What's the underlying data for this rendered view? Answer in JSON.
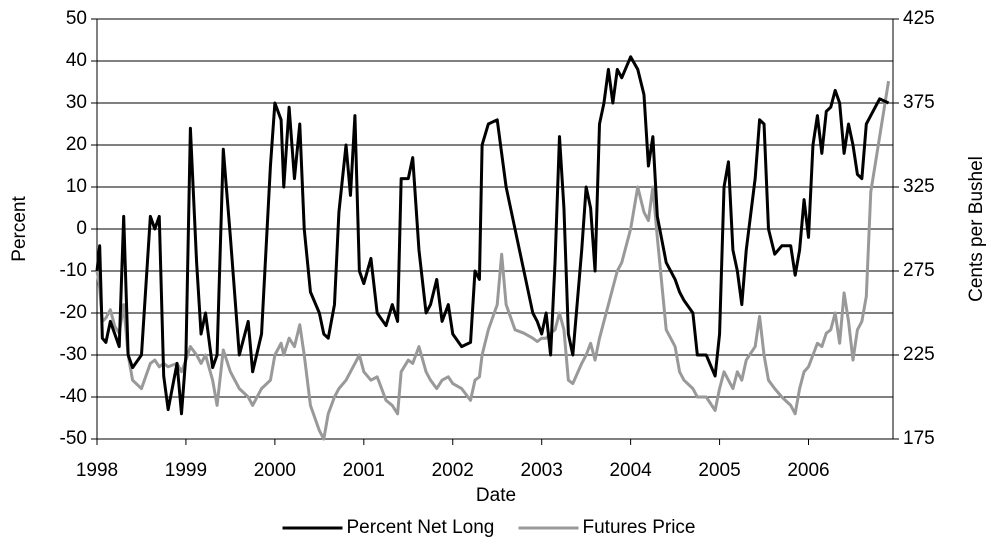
{
  "chart_data": {
    "type": "line",
    "x_label": "Date",
    "y_label": "Percent",
    "y2_label": "Cents per Bushel",
    "x": [
      1998.0,
      1998.03,
      1998.06,
      1998.1,
      1998.15,
      1998.2,
      1998.25,
      1998.3,
      1998.35,
      1998.4,
      1998.5,
      1998.6,
      1998.65,
      1998.7,
      1998.75,
      1998.8,
      1998.9,
      1998.95,
      1999.0,
      1999.05,
      1999.12,
      1999.17,
      1999.22,
      1999.3,
      1999.35,
      1999.42,
      1999.5,
      1999.6,
      1999.7,
      1999.75,
      1999.85,
      1999.95,
      2000.0,
      2000.07,
      2000.1,
      2000.16,
      2000.22,
      2000.28,
      2000.33,
      2000.4,
      2000.5,
      2000.55,
      2000.6,
      2000.67,
      2000.72,
      2000.8,
      2000.85,
      2000.9,
      2000.95,
      2001.0,
      2001.08,
      2001.15,
      2001.25,
      2001.32,
      2001.38,
      2001.42,
      2001.5,
      2001.55,
      2001.62,
      2001.7,
      2001.75,
      2001.82,
      2001.88,
      2001.95,
      2002.0,
      2002.1,
      2002.2,
      2002.25,
      2002.3,
      2002.33,
      2002.4,
      2002.5,
      2002.55,
      2002.6,
      2002.7,
      2002.8,
      2002.9,
      2002.95,
      2003.0,
      2003.05,
      2003.1,
      2003.15,
      2003.2,
      2003.25,
      2003.3,
      2003.35,
      2003.45,
      2003.5,
      2003.55,
      2003.6,
      2003.65,
      2003.7,
      2003.75,
      2003.8,
      2003.85,
      2003.9,
      2004.0,
      2004.08,
      2004.15,
      2004.2,
      2004.25,
      2004.3,
      2004.4,
      2004.5,
      2004.55,
      2004.6,
      2004.7,
      2004.75,
      2004.85,
      2004.95,
      2005.0,
      2005.05,
      2005.1,
      2005.15,
      2005.2,
      2005.25,
      2005.3,
      2005.4,
      2005.45,
      2005.5,
      2005.55,
      2005.62,
      2005.7,
      2005.8,
      2005.85,
      2005.9,
      2005.95,
      2006.0,
      2006.05,
      2006.1,
      2006.15,
      2006.2,
      2006.25,
      2006.3,
      2006.35,
      2006.4,
      2006.45,
      2006.5,
      2006.55,
      2006.6,
      2006.65,
      2006.7,
      2006.8,
      2006.9
    ],
    "series": [
      {
        "name": "Percent Net Long",
        "color": "#000000",
        "axis": "y",
        "values": [
          -10,
          -4,
          -26,
          -27,
          -22,
          -25,
          -28,
          3,
          -30,
          -33,
          -30,
          3,
          0,
          3,
          -35,
          -43,
          -32,
          -44,
          -30,
          24,
          -8,
          -25,
          -20,
          -33,
          -30,
          19,
          -2,
          -30,
          -22,
          -34,
          -25,
          15,
          30,
          26,
          10,
          29,
          12,
          25,
          0,
          -15,
          -20,
          -25,
          -26,
          -18,
          4,
          20,
          8,
          27,
          -10,
          -13,
          -7,
          -20,
          -23,
          -18,
          -22,
          12,
          12,
          17,
          -5,
          -20,
          -18,
          -12,
          -22,
          -18,
          -25,
          -28,
          -27,
          -10,
          -12,
          20,
          25,
          26,
          18,
          10,
          0,
          -10,
          -20,
          -22,
          -25,
          -20,
          -30,
          -8,
          22,
          5,
          -25,
          -30,
          -5,
          10,
          5,
          -10,
          25,
          30,
          38,
          30,
          38,
          36,
          41,
          38,
          32,
          15,
          22,
          3,
          -8,
          -12,
          -15,
          -17,
          -20,
          -30,
          -30,
          -35,
          -25,
          10,
          16,
          -5,
          -10,
          -18,
          -5,
          12,
          26,
          25,
          0,
          -6,
          -4,
          -4,
          -11,
          -5,
          7,
          -2,
          20,
          27,
          18,
          28,
          29,
          33,
          30,
          18,
          25,
          20,
          13,
          12,
          25,
          27,
          31,
          30
        ]
      },
      {
        "name": "Futures Price",
        "color": "#999999",
        "axis": "y2",
        "values": [
          275,
          265,
          245,
          247,
          252,
          242,
          238,
          255,
          225,
          210,
          205,
          220,
          222,
          218,
          220,
          218,
          220,
          215,
          222,
          230,
          225,
          220,
          225,
          210,
          195,
          228,
          215,
          205,
          200,
          195,
          205,
          210,
          225,
          232,
          225,
          235,
          230,
          243,
          225,
          195,
          180,
          175,
          190,
          200,
          205,
          210,
          215,
          220,
          225,
          215,
          210,
          212,
          198,
          195,
          190,
          215,
          222,
          220,
          230,
          215,
          210,
          205,
          210,
          212,
          208,
          205,
          198,
          210,
          212,
          225,
          240,
          255,
          285,
          255,
          240,
          238,
          235,
          233,
          235,
          235,
          238,
          240,
          250,
          240,
          210,
          208,
          220,
          225,
          232,
          222,
          235,
          245,
          255,
          265,
          275,
          280,
          300,
          325,
          310,
          305,
          325,
          295,
          240,
          230,
          215,
          210,
          205,
          200,
          200,
          192,
          205,
          215,
          210,
          205,
          215,
          210,
          222,
          230,
          248,
          225,
          210,
          205,
          200,
          195,
          190,
          205,
          215,
          218,
          225,
          232,
          230,
          238,
          240,
          250,
          232,
          262,
          245,
          222,
          240,
          245,
          260,
          322,
          355,
          388
        ]
      }
    ],
    "xlim": [
      1998,
      2006.95
    ],
    "xticks": [
      1998,
      1999,
      2000,
      2001,
      2002,
      2003,
      2004,
      2005,
      2006
    ],
    "ylim": [
      -50,
      50
    ],
    "yticks": [
      -50,
      -40,
      -30,
      -20,
      -10,
      0,
      10,
      20,
      30,
      40,
      50
    ],
    "y2lim": [
      175,
      425
    ],
    "y2ticks": [
      175,
      225,
      275,
      325,
      375,
      425
    ],
    "grid": true
  }
}
